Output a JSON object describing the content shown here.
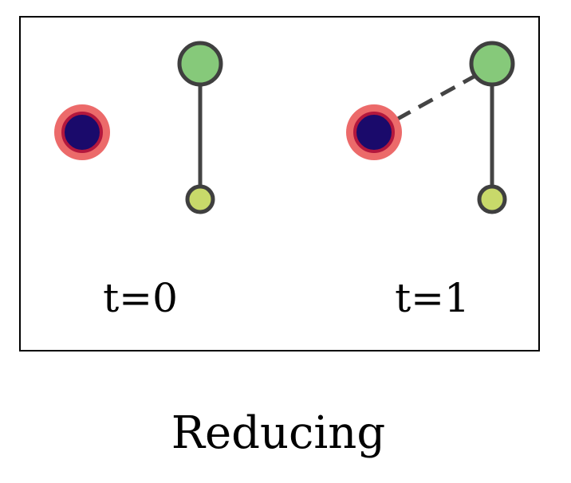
{
  "panels": [
    {
      "label": "t=0",
      "connection": "none"
    },
    {
      "label": "t=1",
      "connection": "dashed"
    }
  ],
  "caption": "Reducing",
  "colors": {
    "dark_node_fill": "#1a0a6b",
    "dark_node_ring": "#ec6a6a",
    "dark_node_inner_ring": "#b3173d",
    "green_node_fill": "#86c97a",
    "yellow_node_fill": "#c8d96a",
    "edge": "#444444",
    "frame": "#000000"
  }
}
